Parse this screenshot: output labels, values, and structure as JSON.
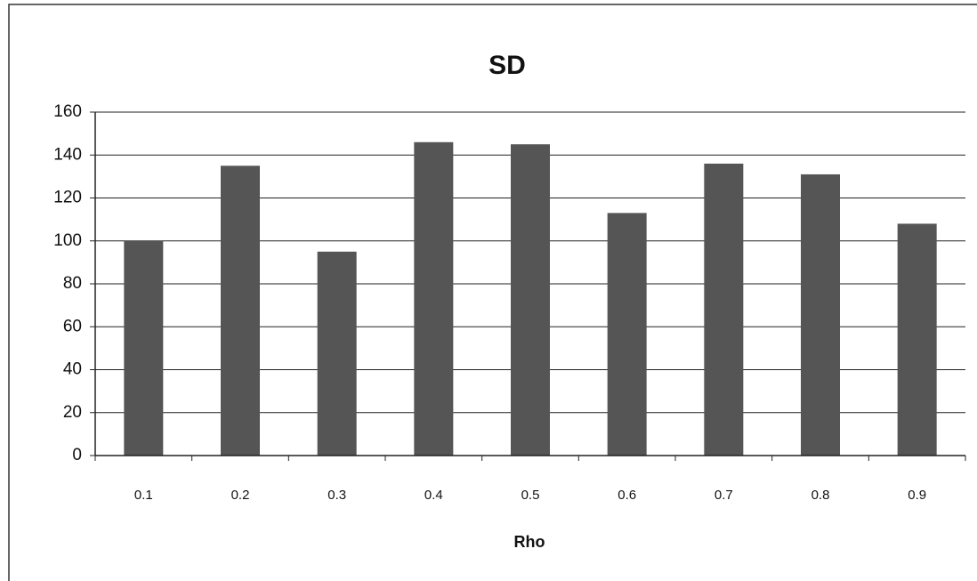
{
  "chart_data": {
    "type": "bar",
    "title": "SD",
    "x_label": "Rho",
    "categories": [
      "0.1",
      "0.2",
      "0.3",
      "0.4",
      "0.5",
      "0.6",
      "0.7",
      "0.8",
      "0.9"
    ],
    "values": [
      100,
      135,
      95,
      146,
      145,
      113,
      136,
      131,
      108
    ],
    "color": "#555555",
    "ylim": [
      0,
      160
    ],
    "yticks": [
      0,
      20,
      40,
      60,
      80,
      100,
      120,
      140,
      160
    ],
    "grid": true
  }
}
